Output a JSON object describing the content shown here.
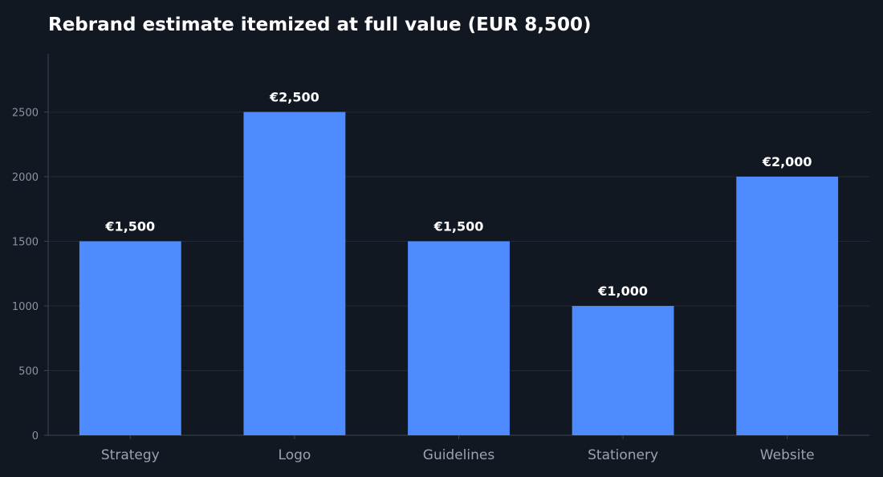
{
  "chart_data": {
    "type": "bar",
    "title": "Rebrand estimate itemized at full value (EUR 8,500)",
    "xlabel": "",
    "ylabel": "",
    "categories": [
      "Strategy",
      "Logo",
      "Guidelines",
      "Stationery",
      "Website"
    ],
    "values": [
      1500,
      2500,
      1500,
      1000,
      2000
    ],
    "data_labels": [
      "€1,500",
      "€2,500",
      "€1,500",
      "€1,000",
      "€2,000"
    ],
    "ylim": [
      0,
      2950
    ],
    "yticks": [
      0,
      500,
      1000,
      1500,
      2000,
      2500
    ],
    "grid": true,
    "legend": "none",
    "colors": {
      "bar": "#4d8bff",
      "background": "#111821",
      "grid": "#1f2a36",
      "axis": "#3a4656"
    }
  }
}
